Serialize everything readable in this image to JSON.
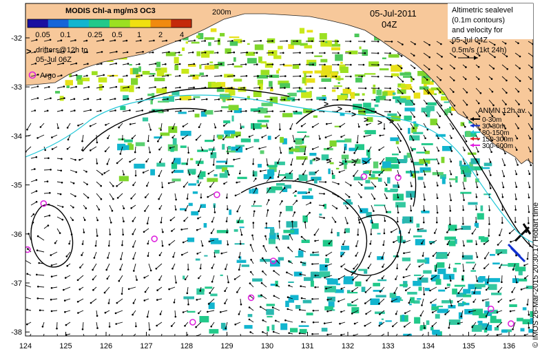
{
  "map": {
    "colorbar": {
      "title": "MODIS Chl-a mg/m3 OC3",
      "ticks": [
        "0.05",
        "0.1",
        "0.25",
        "0.5",
        "1",
        "2",
        "4"
      ],
      "colors": [
        "#1a0fa0",
        "#1565d8",
        "#12b5cf",
        "#22c98a",
        "#9be022",
        "#f0e010",
        "#f08a10",
        "#c42a0a"
      ]
    },
    "isobath_label": "200m",
    "date": "05-Jul-2011",
    "time": "04Z",
    "altimetry_note": [
      "Altimetric sealevel",
      "(0.1m contours)",
      "and velocity for",
      "05-Jul 04Z",
      "0.5m/s (1kt 24h)"
    ],
    "drifters_note": [
      "drifters@12h to",
      "05-Jul 06Z"
    ],
    "argo_label": "Argo",
    "anmn": {
      "title": "ANMN 12h av.",
      "depths": [
        {
          "label": "0-30m",
          "color": "#000000"
        },
        {
          "label": "30-80m",
          "color": "#1030d0"
        },
        {
          "label": "80-150m",
          "color": "#20c8d8"
        },
        {
          "label": "150-300m",
          "color": "#e02020"
        },
        {
          "label": "300-600m",
          "color": "#e020e0"
        }
      ]
    },
    "x_ticks": [
      "124",
      "125",
      "126",
      "127",
      "128",
      "129",
      "130",
      "131",
      "132",
      "133",
      "134",
      "135",
      "136"
    ],
    "y_ticks": [
      "-32",
      "-33",
      "-34",
      "-35",
      "-36",
      "-37",
      "-38"
    ],
    "credit": "© IMOS 26-Mar-2015 20:30:17 Hobart time",
    "colors": {
      "land": "#f7c89a",
      "ocean": "#ffffff",
      "drifter": "#ff22ff",
      "argo": "#dd22dd"
    },
    "argo_floats": [
      {
        "lon": 124.45,
        "lat": -35.38
      },
      {
        "lon": 124.05,
        "lat": -36.32
      },
      {
        "lon": 127.2,
        "lat": -36.1
      },
      {
        "lon": 128.75,
        "lat": -35.2
      },
      {
        "lon": 130.15,
        "lat": -36.55
      },
      {
        "lon": 129.6,
        "lat": -37.3
      },
      {
        "lon": 128.15,
        "lat": -37.8
      },
      {
        "lon": 132.4,
        "lat": -34.83
      },
      {
        "lon": 133.25,
        "lat": -34.85
      },
      {
        "lon": 135.55,
        "lat": -37.53
      },
      {
        "lon": 136.05,
        "lat": -37.83
      }
    ]
  }
}
